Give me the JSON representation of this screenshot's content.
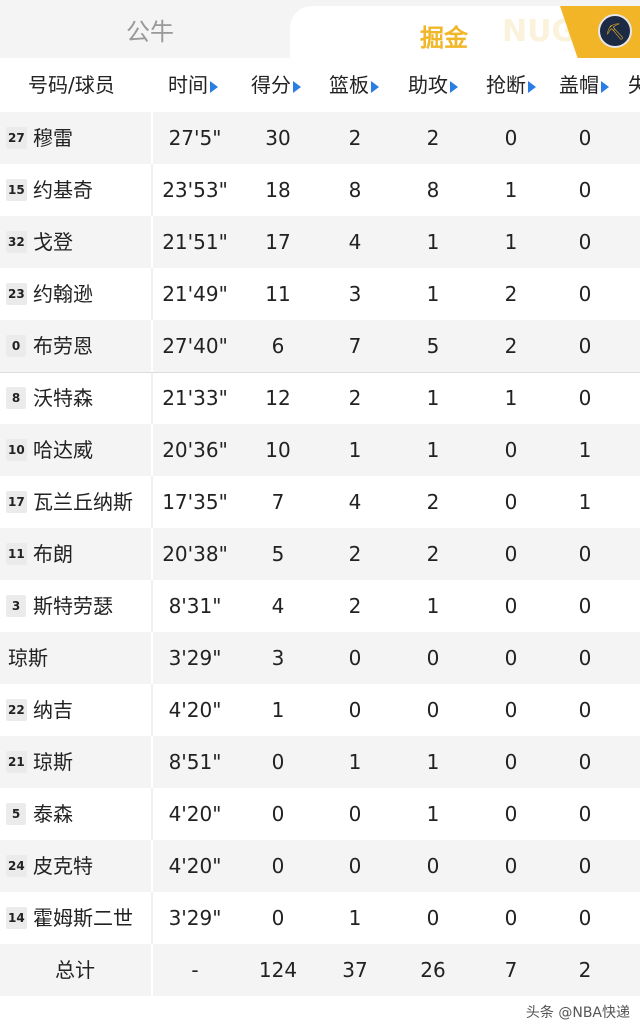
{
  "tabs": {
    "left": "公牛",
    "right": "掘金",
    "right_watermark": "NUG",
    "logo_icon": "nuggets-logo"
  },
  "colors": {
    "accent": "#f2b528",
    "arrow": "#2a7de1"
  },
  "columns": [
    "号码/球员",
    "时间",
    "得分",
    "篮板",
    "助攻",
    "抢断",
    "盖帽",
    "失"
  ],
  "players": [
    {
      "num": "27",
      "name": "穆雷",
      "time": "27'5\"",
      "pts": "30",
      "reb": "2",
      "ast": "2",
      "stl": "0",
      "blk": "0"
    },
    {
      "num": "15",
      "name": "约基奇",
      "time": "23'53\"",
      "pts": "18",
      "reb": "8",
      "ast": "8",
      "stl": "1",
      "blk": "0"
    },
    {
      "num": "32",
      "name": "戈登",
      "time": "21'51\"",
      "pts": "17",
      "reb": "4",
      "ast": "1",
      "stl": "1",
      "blk": "0"
    },
    {
      "num": "23",
      "name": "约翰逊",
      "time": "21'49\"",
      "pts": "11",
      "reb": "3",
      "ast": "1",
      "stl": "2",
      "blk": "0"
    },
    {
      "num": "0",
      "name": "布劳恩",
      "time": "27'40\"",
      "pts": "6",
      "reb": "7",
      "ast": "5",
      "stl": "2",
      "blk": "0"
    },
    {
      "num": "8",
      "name": "沃特森",
      "time": "21'33\"",
      "pts": "12",
      "reb": "2",
      "ast": "1",
      "stl": "1",
      "blk": "0"
    },
    {
      "num": "10",
      "name": "哈达威",
      "time": "20'36\"",
      "pts": "10",
      "reb": "1",
      "ast": "1",
      "stl": "0",
      "blk": "1"
    },
    {
      "num": "17",
      "name": "瓦兰丘纳斯",
      "time": "17'35\"",
      "pts": "7",
      "reb": "4",
      "ast": "2",
      "stl": "0",
      "blk": "1"
    },
    {
      "num": "11",
      "name": "布朗",
      "time": "20'38\"",
      "pts": "5",
      "reb": "2",
      "ast": "2",
      "stl": "0",
      "blk": "0"
    },
    {
      "num": "3",
      "name": "斯特劳瑟",
      "time": "8'31\"",
      "pts": "4",
      "reb": "2",
      "ast": "1",
      "stl": "0",
      "blk": "0"
    },
    {
      "num": "",
      "name": "琼斯",
      "time": "3'29\"",
      "pts": "3",
      "reb": "0",
      "ast": "0",
      "stl": "0",
      "blk": "0"
    },
    {
      "num": "22",
      "name": "纳吉",
      "time": "4'20\"",
      "pts": "1",
      "reb": "0",
      "ast": "0",
      "stl": "0",
      "blk": "0"
    },
    {
      "num": "21",
      "name": "琼斯",
      "time": "8'51\"",
      "pts": "0",
      "reb": "1",
      "ast": "1",
      "stl": "0",
      "blk": "0"
    },
    {
      "num": "5",
      "name": "泰森",
      "time": "4'20\"",
      "pts": "0",
      "reb": "0",
      "ast": "1",
      "stl": "0",
      "blk": "0"
    },
    {
      "num": "24",
      "name": "皮克特",
      "time": "4'20\"",
      "pts": "0",
      "reb": "0",
      "ast": "0",
      "stl": "0",
      "blk": "0"
    },
    {
      "num": "14",
      "name": "霍姆斯二世",
      "time": "3'29\"",
      "pts": "0",
      "reb": "1",
      "ast": "0",
      "stl": "0",
      "blk": "0"
    }
  ],
  "total": {
    "name": "总计",
    "time": "-",
    "pts": "124",
    "reb": "37",
    "ast": "26",
    "stl": "7",
    "blk": "2"
  },
  "watermark": "头条 @NBA快递"
}
